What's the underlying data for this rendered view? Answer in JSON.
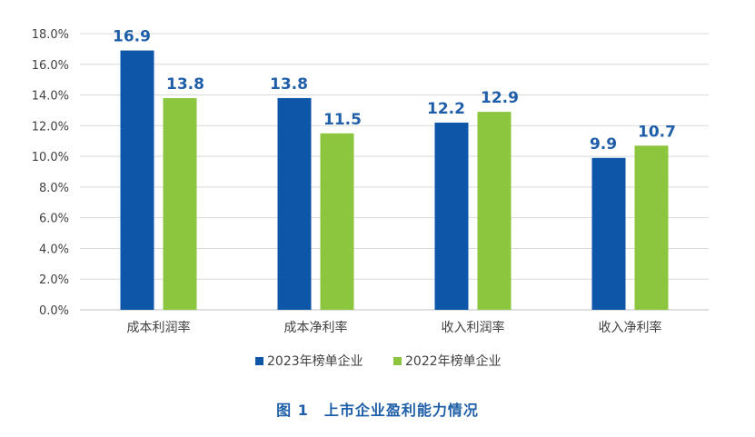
{
  "chart_data": {
    "type": "bar",
    "categories": [
      "成本利润率",
      "成本净利率",
      "收入利润率",
      "收入净利率"
    ],
    "series": [
      {
        "name": "2023年榜单企业",
        "values": [
          16.9,
          13.8,
          12.2,
          9.9
        ],
        "color": "#0e56a7"
      },
      {
        "name": "2022年榜单企业",
        "values": [
          13.8,
          11.5,
          12.9,
          10.7
        ],
        "color": "#8cc63f"
      }
    ],
    "ylim": [
      0,
      18
    ],
    "yticks": [
      "0.0%",
      "2.0%",
      "4.0%",
      "6.0%",
      "8.0%",
      "10.0%",
      "12.0%",
      "14.0%",
      "16.0%",
      "18.0%"
    ],
    "grid": true,
    "legend_position": "bottom",
    "label_colors": [
      "#1f5ea8",
      "#1f5ea8"
    ]
  },
  "caption": "图 1　上市企业盈利能力情况"
}
